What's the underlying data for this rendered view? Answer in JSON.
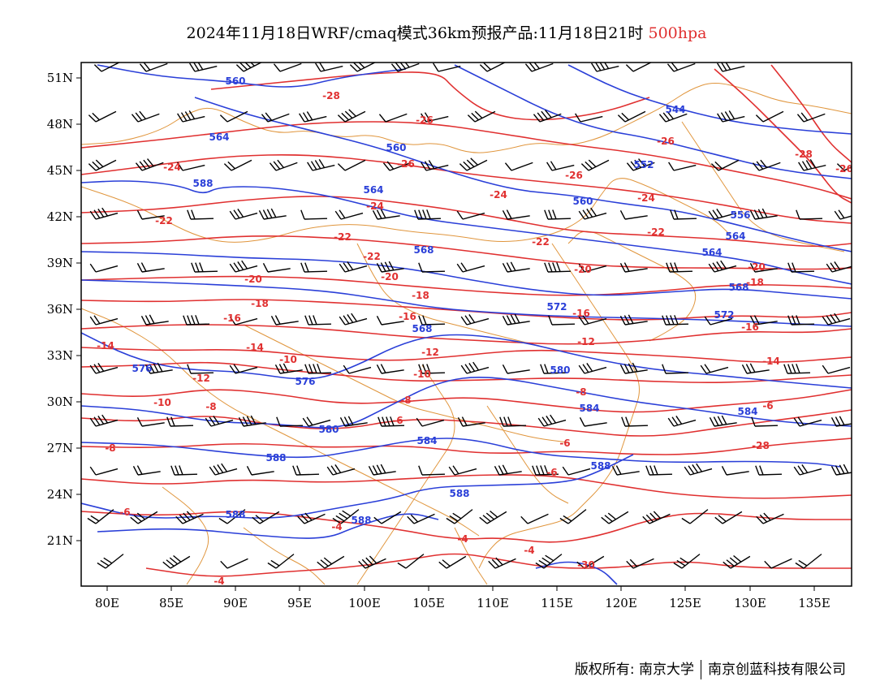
{
  "title": {
    "main": "2024年11月18日WRF/cmaq模式36km预报产品:11月18日21时",
    "level": "500hpa"
  },
  "axes": {
    "lon_labels": [
      "80E",
      "85E",
      "90E",
      "95E",
      "100E",
      "105E",
      "110E",
      "115E",
      "120E",
      "125E",
      "130E",
      "135E"
    ],
    "lat_labels": [
      "51N",
      "48N",
      "45N",
      "42N",
      "39N",
      "36N",
      "33N",
      "30N",
      "27N",
      "24N",
      "21N"
    ]
  },
  "colors": {
    "height_contour": "#2a3fd8",
    "temperature_contour": "#e03030",
    "boundary": "#e0953c",
    "wind_barb": "#000000"
  },
  "height_labels": [
    "560",
    "564",
    "588",
    "560",
    "564",
    "544",
    "552",
    "560",
    "556",
    "568",
    "564",
    "568",
    "564",
    "572",
    "568",
    "572",
    "576",
    "580",
    "584",
    "576",
    "584",
    "580",
    "588",
    "588",
    "584",
    "588",
    "588",
    "588"
  ],
  "temperature_labels": [
    "-28",
    "-26",
    "-26",
    "-24",
    "-24",
    "-26",
    "-26",
    "-24",
    "-24",
    "-22",
    "-22",
    "-22",
    "-22",
    "-22",
    "-20",
    "-20",
    "-20",
    "-20",
    "-18",
    "-18",
    "-18",
    "-16",
    "-16",
    "-16",
    "-14",
    "-14",
    "-14",
    "-16",
    "-12",
    "-12",
    "-12",
    "-10",
    "-10",
    "-10",
    "-8",
    "-8",
    "-8",
    "-8",
    "-6",
    "-6",
    "-6",
    "-6",
    "-6",
    "-4",
    "-4",
    "-4",
    "-4",
    "-30",
    "-28",
    "-28",
    "-26"
  ],
  "footer": {
    "left": "版权所有: 南京大学",
    "right": "南京创蓝科技有限公司"
  }
}
